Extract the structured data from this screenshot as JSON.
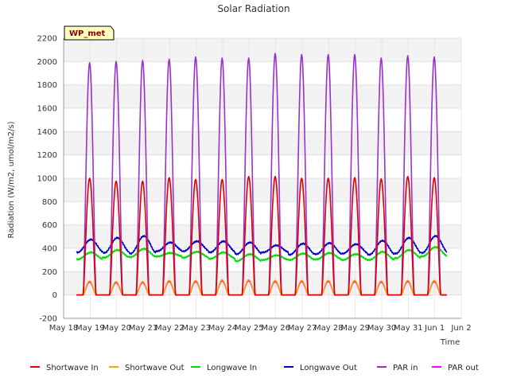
{
  "chart_data": {
    "type": "line",
    "title": "Solar Radiation",
    "xlabel": "Time",
    "ylabel": "Radiation (W/m2, umol/m2/s)",
    "badge": "WP_met",
    "ylim": [
      -200,
      2200
    ],
    "yticks": [
      -200,
      0,
      200,
      400,
      600,
      800,
      1000,
      1200,
      1400,
      1600,
      1800,
      2000,
      2200
    ],
    "xlim": [
      "2018-05-18",
      "2018-06-02"
    ],
    "xticks": [
      "May 18",
      "May 19",
      "May 20",
      "May 21",
      "May 22",
      "May 23",
      "May 24",
      "May 25",
      "May 26",
      "May 27",
      "May 28",
      "May 29",
      "May 30",
      "May 31",
      "Jun 1",
      "Jun 2"
    ],
    "grid": true,
    "legend_position": "bottom",
    "days": [
      "May 19",
      "May 20",
      "May 21",
      "May 22",
      "May 23",
      "May 24",
      "May 25",
      "May 26",
      "May 27",
      "May 28",
      "May 29",
      "May 30",
      "May 31",
      "Jun 1"
    ],
    "series": [
      {
        "name": "Shortwave In",
        "color": "#dd0000",
        "daily_peak": [
          1000,
          975,
          975,
          1005,
          990,
          990,
          1015,
          1015,
          1000,
          1000,
          1005,
          995,
          1015,
          1005
        ],
        "night": 0
      },
      {
        "name": "Shortwave Out",
        "color": "#ffa500",
        "daily_peak": [
          120,
          115,
          115,
          125,
          125,
          130,
          130,
          125,
          125,
          125,
          125,
          120,
          125,
          125
        ],
        "night": 0
      },
      {
        "name": "Longwave In",
        "color": "#00dd00",
        "daily_peak": [
          365,
          385,
          395,
          360,
          370,
          365,
          350,
          340,
          355,
          360,
          350,
          370,
          385,
          410
        ],
        "daily_trough": [
          305,
          320,
          325,
          330,
          320,
          310,
          290,
          300,
          300,
          305,
          300,
          300,
          315,
          330
        ]
      },
      {
        "name": "Longwave Out",
        "color": "#0000cc",
        "daily_peak": [
          475,
          490,
          505,
          450,
          460,
          460,
          450,
          425,
          440,
          445,
          435,
          465,
          490,
          505
        ],
        "daily_trough": [
          365,
          360,
          355,
          375,
          375,
          365,
          350,
          365,
          345,
          350,
          355,
          345,
          355,
          360
        ]
      },
      {
        "name": "PAR in",
        "color": "#9932cc",
        "daily_peak": [
          1990,
          2000,
          2010,
          2020,
          2040,
          2030,
          2030,
          2070,
          2060,
          2060,
          2060,
          2030,
          2050,
          2040
        ],
        "night": 0
      },
      {
        "name": "PAR out",
        "color": "#ff00ff",
        "daily_peak": [
          110,
          105,
          105,
          115,
          115,
          120,
          120,
          115,
          115,
          115,
          115,
          110,
          115,
          115
        ],
        "night": 0
      }
    ]
  }
}
